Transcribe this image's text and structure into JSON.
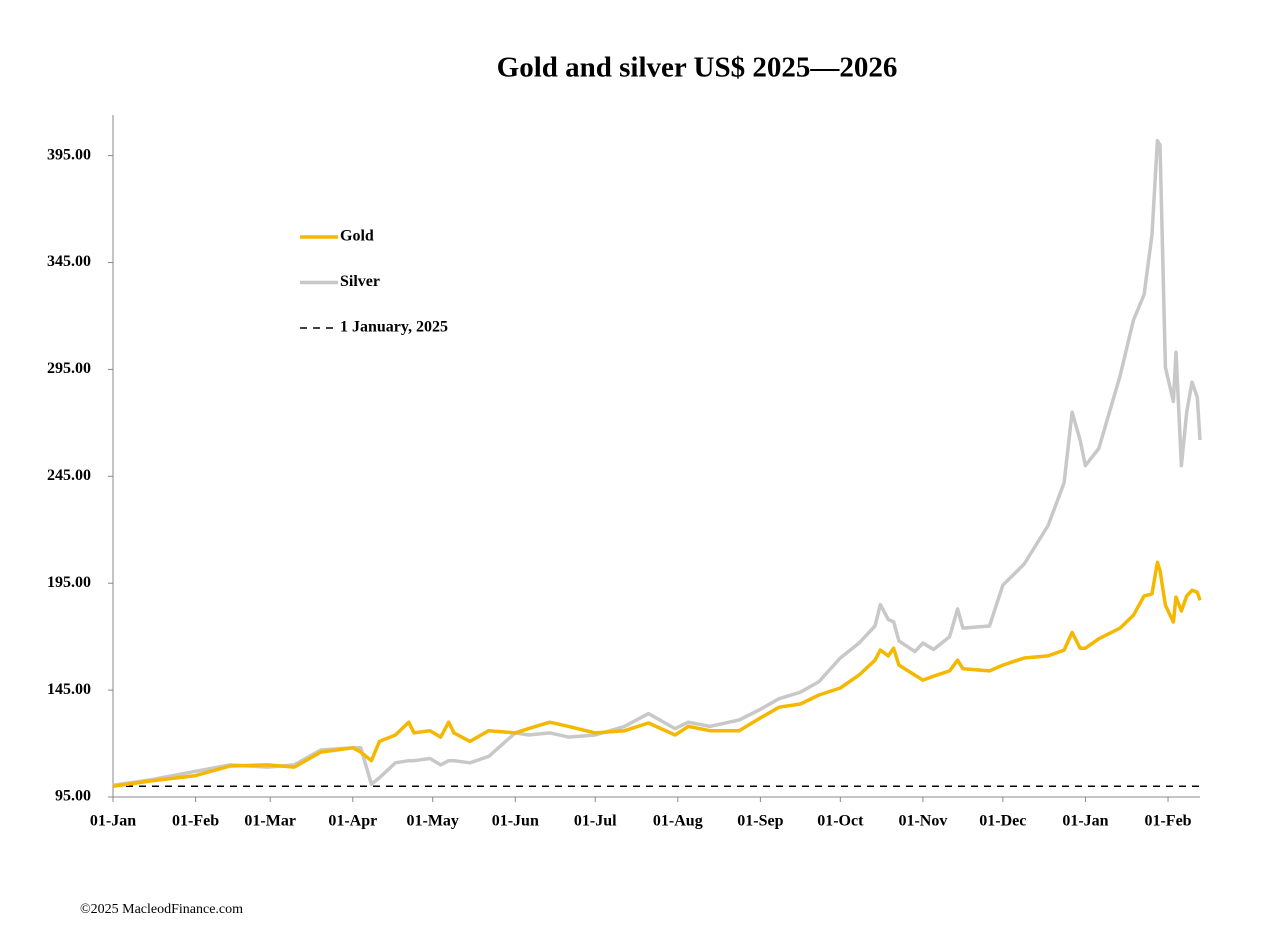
{
  "chart_data": {
    "type": "line",
    "title": "Gold and silver  US$ 2025—2026",
    "footnote": "©2025 MacleodFinance.com",
    "x": [
      0,
      14,
      31,
      44,
      58,
      68,
      78,
      90,
      93,
      97,
      100,
      106,
      111,
      113,
      119,
      123,
      126,
      128,
      134,
      141,
      151,
      156,
      164,
      171,
      181,
      192,
      201,
      211,
      216,
      224,
      235,
      243,
      250,
      258,
      265,
      273,
      280,
      286,
      288,
      291,
      293,
      295,
      301,
      304,
      308,
      314,
      317,
      319,
      329,
      334,
      342,
      351,
      357,
      360,
      363,
      365,
      370,
      378,
      383,
      387,
      390,
      392,
      393,
      395,
      398,
      399,
      401,
      403,
      405,
      407,
      408
    ],
    "series": [
      {
        "name": "Gold",
        "color": "#f5b800",
        "values": [
          100,
          102.5,
          105,
          109.5,
          110,
          109,
          116,
          118,
          116,
          112,
          121,
          124,
          130,
          125,
          126,
          123,
          130,
          125,
          121,
          126,
          125,
          127,
          130,
          128,
          125,
          126,
          129.6,
          124,
          128,
          126,
          126,
          132,
          137,
          138.5,
          142.7,
          146,
          152,
          159,
          163.7,
          161,
          164.6,
          156.7,
          152,
          149.7,
          151.5,
          154,
          159,
          155,
          154,
          156.7,
          160,
          161,
          163.7,
          172,
          164.6,
          164.6,
          169,
          174,
          180,
          189,
          190,
          204.8,
          201,
          184.7,
          176.8,
          188.5,
          182,
          189,
          191.7,
          190.8,
          187
        ]
      },
      {
        "name": "Silver",
        "color": "#c8c8c8",
        "values": [
          100.5,
          103,
          107,
          110,
          109,
          110,
          117,
          118,
          118,
          101,
          104,
          111,
          112,
          112,
          113,
          110,
          112,
          112,
          111,
          114,
          125,
          124,
          125,
          123,
          124,
          128,
          134,
          127,
          130,
          128,
          131,
          136,
          141,
          144,
          149,
          160,
          167,
          175,
          185,
          178,
          177,
          168,
          163,
          167,
          164,
          170,
          183,
          174,
          175,
          194,
          204,
          222,
          242,
          275,
          262,
          250,
          258,
          292,
          318,
          330,
          358,
          402,
          400,
          296,
          280,
          303,
          250,
          275,
          289,
          282,
          262
        ]
      },
      {
        "name": "1 January, 2025",
        "color": "#000000",
        "line_style": "dashed",
        "values": [
          100,
          100,
          100,
          100,
          100,
          100,
          100,
          100,
          100,
          100,
          100,
          100,
          100,
          100,
          100,
          100,
          100,
          100,
          100,
          100,
          100,
          100,
          100,
          100,
          100,
          100,
          100,
          100,
          100,
          100,
          100,
          100,
          100,
          100,
          100,
          100,
          100,
          100,
          100,
          100,
          100,
          100,
          100,
          100,
          100,
          100,
          100,
          100,
          100,
          100,
          100,
          100,
          100,
          100,
          100,
          100,
          100,
          100,
          100,
          100,
          100,
          100,
          100,
          100,
          100,
          100,
          100,
          100,
          100,
          100,
          100
        ]
      }
    ],
    "xlim": [
      0,
      408
    ],
    "xticks": [
      {
        "value": 0,
        "label": "01-Jan"
      },
      {
        "value": 31,
        "label": "01-Feb"
      },
      {
        "value": 59,
        "label": "01-Mar"
      },
      {
        "value": 90,
        "label": "01-Apr"
      },
      {
        "value": 120,
        "label": "01-May"
      },
      {
        "value": 151,
        "label": "01-Jun"
      },
      {
        "value": 181,
        "label": "01-Jul"
      },
      {
        "value": 212,
        "label": "01-Aug"
      },
      {
        "value": 243,
        "label": "01-Sep"
      },
      {
        "value": 273,
        "label": "01-Oct"
      },
      {
        "value": 304,
        "label": "01-Nov"
      },
      {
        "value": 334,
        "label": "01-Dec"
      },
      {
        "value": 365,
        "label": "01-Jan"
      },
      {
        "value": 396,
        "label": "01-Feb"
      }
    ],
    "ylim": [
      95,
      414
    ],
    "yticks": [
      {
        "value": 95,
        "label": "95.00"
      },
      {
        "value": 145,
        "label": "145.00"
      },
      {
        "value": 195,
        "label": "195.00"
      },
      {
        "value": 245,
        "label": "245.00"
      },
      {
        "value": 295,
        "label": "295.00"
      },
      {
        "value": 345,
        "label": "345.00"
      },
      {
        "value": 395,
        "label": "395.00"
      }
    ],
    "legend": "upper-left"
  }
}
